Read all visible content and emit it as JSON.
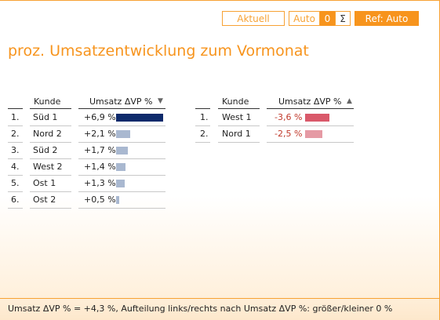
{
  "toolbar": {
    "aktuell_label": "Aktuell",
    "auto_label": "Auto",
    "zero_label": "0",
    "sigma_label": "Σ",
    "ref_label": "Ref: Auto"
  },
  "title": "proz. Umsatzentwicklung zum Vormonat",
  "left_table": {
    "col_kunde": "Kunde",
    "col_umsatz": "Umsatz ΔVP %",
    "sort_icon": "▼",
    "rows": [
      {
        "rank": "1.",
        "kunde": "Süd 1",
        "value_label": "+6,9 %",
        "value": 6.9
      },
      {
        "rank": "2.",
        "kunde": "Nord 2",
        "value_label": "+2,1 %",
        "value": 2.1
      },
      {
        "rank": "3.",
        "kunde": "Süd 2",
        "value_label": "+1,7 %",
        "value": 1.7
      },
      {
        "rank": "4.",
        "kunde": "West 2",
        "value_label": "+1,4 %",
        "value": 1.4
      },
      {
        "rank": "5.",
        "kunde": "Ost 1",
        "value_label": "+1,3 %",
        "value": 1.3
      },
      {
        "rank": "6.",
        "kunde": "Ost 2",
        "value_label": "+0,5 %",
        "value": 0.5
      }
    ]
  },
  "right_table": {
    "col_kunde": "Kunde",
    "col_umsatz": "Umsatz ΔVP %",
    "sort_icon": "▲",
    "rows": [
      {
        "rank": "1.",
        "kunde": "West 1",
        "value_label": "-3,6 %",
        "value": -3.6
      },
      {
        "rank": "2.",
        "kunde": "Nord 1",
        "value_label": "-2,5 %",
        "value": -2.5
      }
    ]
  },
  "colors": {
    "accent": "#f7941d",
    "bar_top": "#0d2a6b",
    "bar_positive": "#a9b8d0",
    "bar_negative_top": "#d9596a",
    "bar_negative": "#e59aa4"
  },
  "footer": "Umsatz ΔVP % = +4,3 %, Aufteilung links/rechts nach Umsatz ΔVP %: größer/kleiner 0 %"
}
